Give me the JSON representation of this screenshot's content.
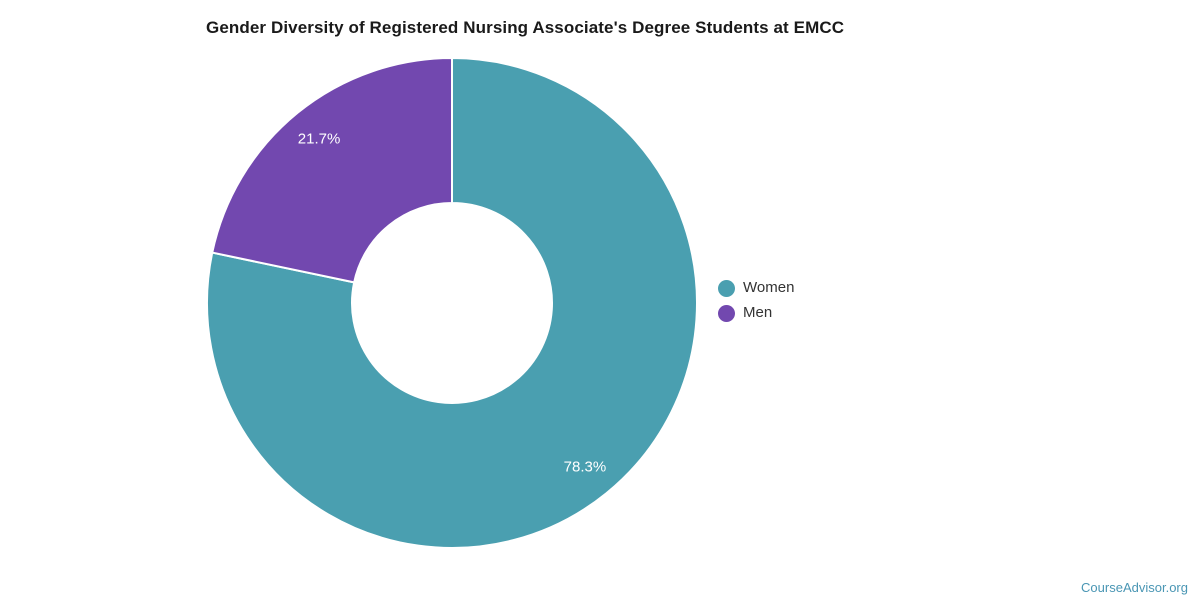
{
  "title": "Gender Diversity of Registered Nursing Associate's Degree Students at EMCC",
  "footer": {
    "text": "CourseAdvisor.org",
    "color": "#4a96b4"
  },
  "legend": {
    "position": "right",
    "items": [
      {
        "label": "Women",
        "color": "#4a9fb0"
      },
      {
        "label": "Men",
        "color": "#7248af"
      }
    ]
  },
  "chart_data": {
    "type": "pie",
    "subtype": "donut",
    "title": "Gender Diversity of Registered Nursing Associate's Degree Students at EMCC",
    "categories": [
      "Women",
      "Men"
    ],
    "values": [
      78.3,
      21.7
    ],
    "unit": "percent",
    "slices": [
      {
        "name": "Women",
        "value": 78.3,
        "label_text": "78.3%",
        "color": "#4a9fb0"
      },
      {
        "name": "Men",
        "value": 21.7,
        "label_text": "21.7%",
        "color": "#7248af"
      }
    ],
    "start_angle_deg": 0,
    "direction": "clockwise",
    "donut_hole_ratio": 0.41,
    "separator_color": "#ffffff",
    "slice_label_color": "#ffffff",
    "legend_position": "right",
    "grid": false
  }
}
